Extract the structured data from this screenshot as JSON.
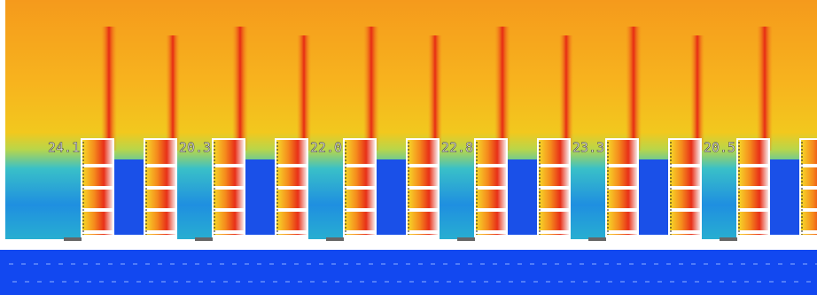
{
  "labels": [
    "24.1",
    "20.3",
    "22.0",
    "22.8",
    "23.3",
    "20.5"
  ]
}
